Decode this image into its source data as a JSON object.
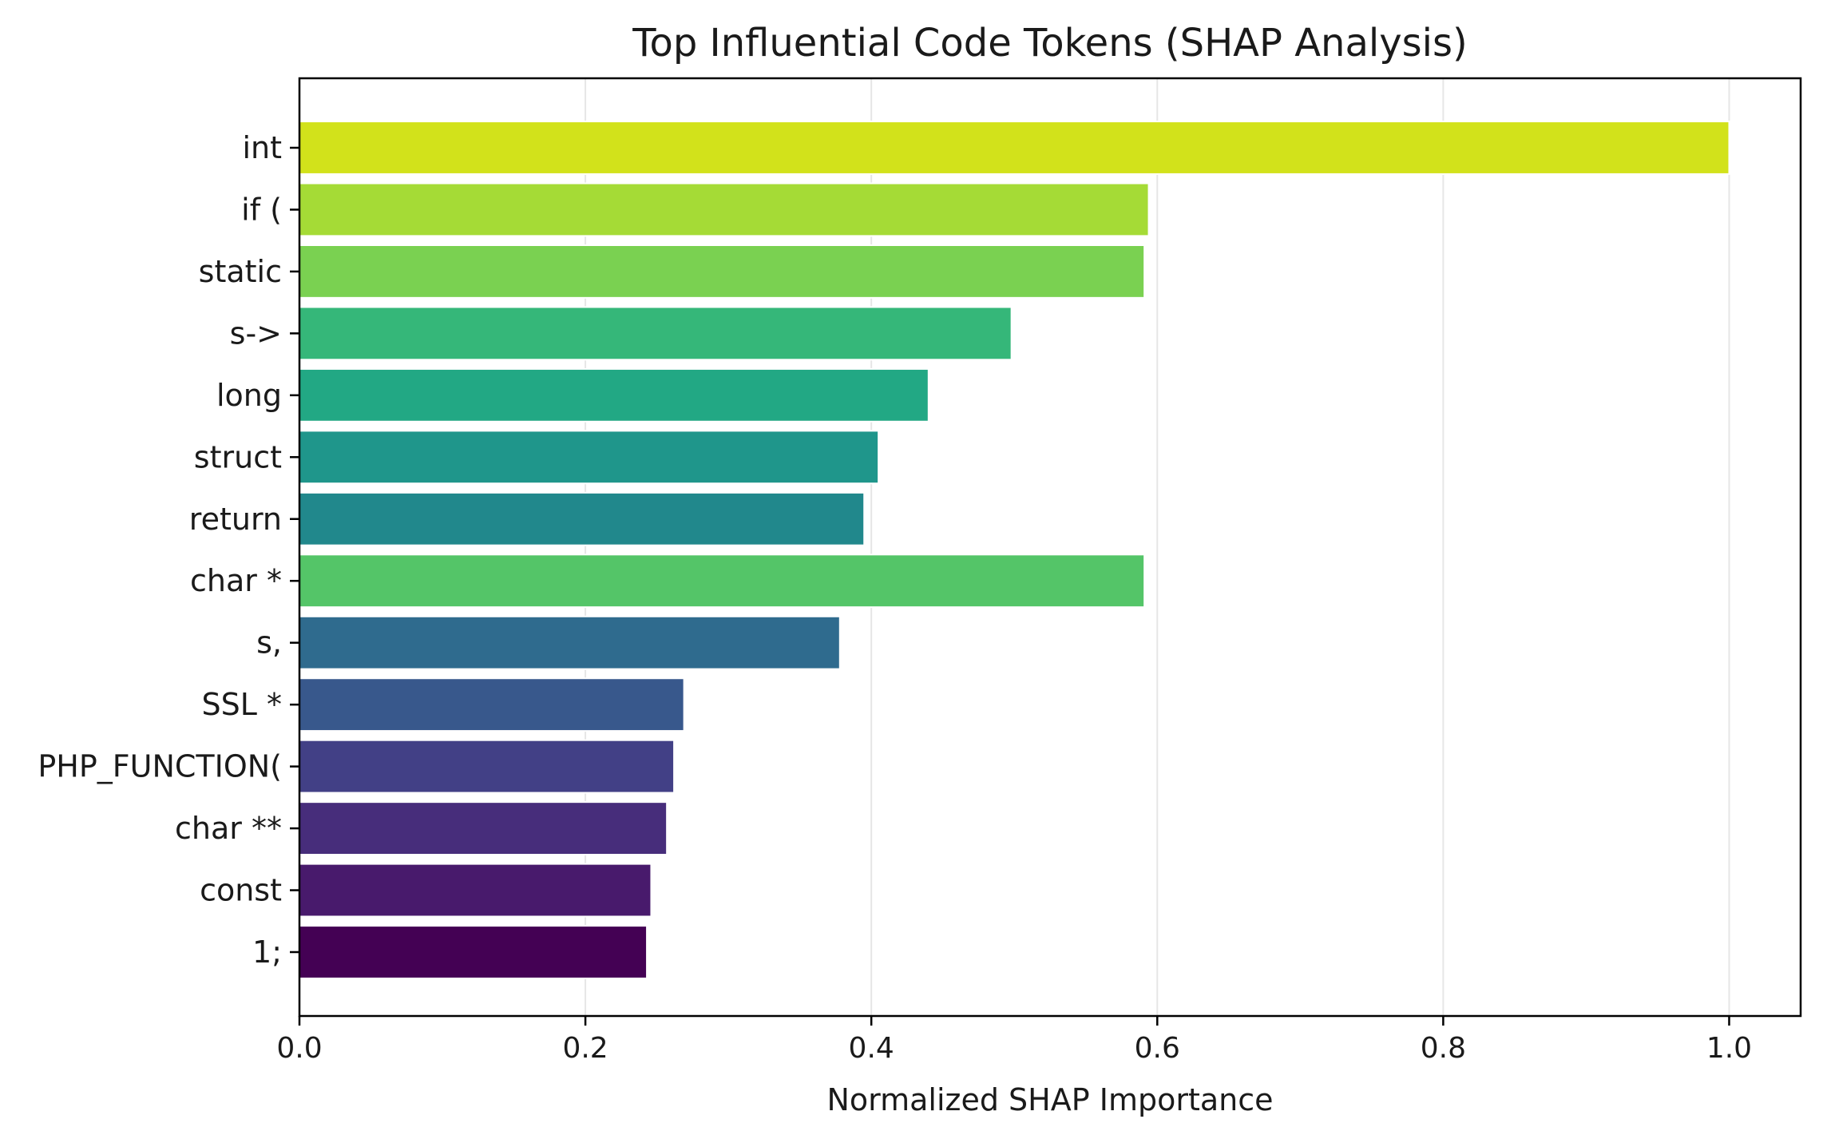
{
  "chart_data": {
    "type": "bar",
    "orientation": "horizontal",
    "title": "Top Influential Code Tokens (SHAP Analysis)",
    "xlabel": "Normalized SHAP Importance",
    "ylabel": "",
    "xlim": [
      0.0,
      1.05
    ],
    "xticks": [
      0.0,
      0.2,
      0.4,
      0.6,
      0.8,
      1.0
    ],
    "xtick_labels": [
      "0.0",
      "0.2",
      "0.4",
      "0.6",
      "0.8",
      "1.0"
    ],
    "grid": "x",
    "categories": [
      "int",
      "if (",
      "static",
      "s->",
      "long",
      "struct",
      "return",
      "char *",
      "s,",
      "SSL *",
      "PHP_FUNCTION(",
      "char **",
      "const",
      "1;"
    ],
    "values": [
      1.0,
      0.594,
      0.591,
      0.498,
      0.44,
      0.405,
      0.395,
      0.591,
      0.378,
      0.269,
      0.262,
      0.257,
      0.246,
      0.243
    ],
    "colors": [
      "#d2e21b",
      "#a5db36",
      "#7ad151",
      "#35b779",
      "#22a884",
      "#1f968b",
      "#21888c",
      "#54c568",
      "#2f6b8e",
      "#38588c",
      "#424086",
      "#472d7b",
      "#481a6c",
      "#440154"
    ]
  }
}
